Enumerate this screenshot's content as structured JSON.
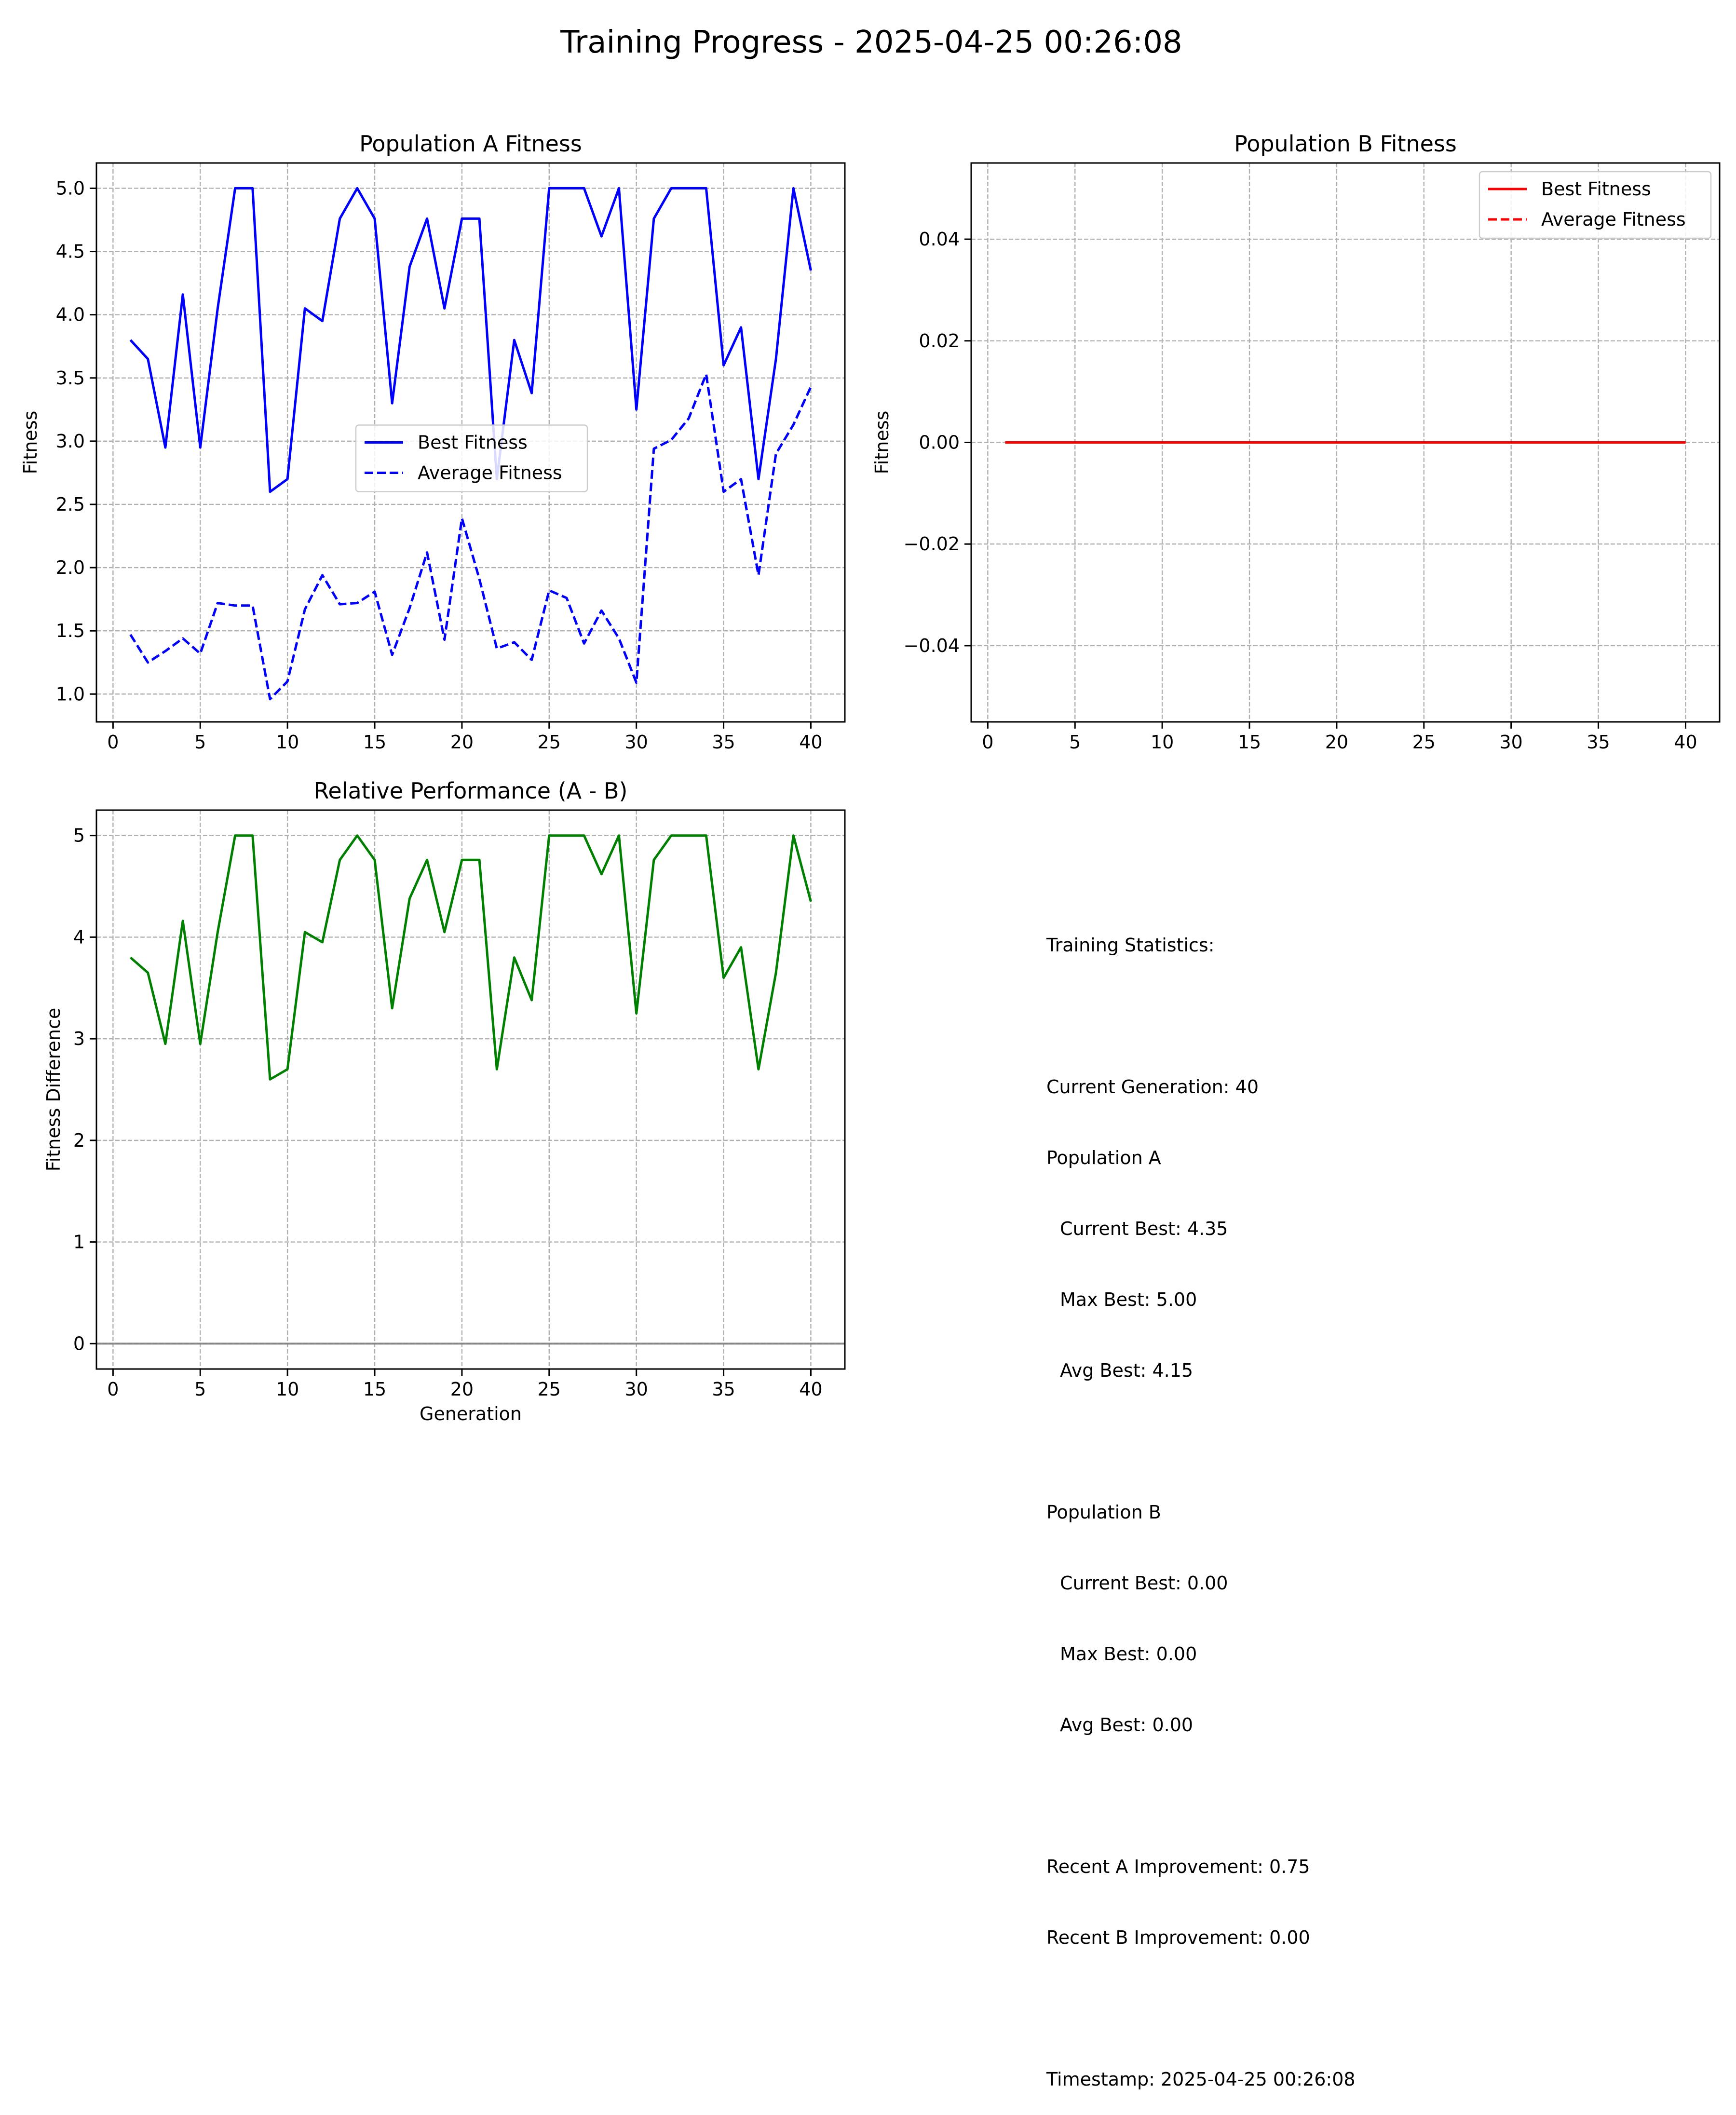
{
  "figure": {
    "title": "Training Progress - 2025-04-25 00:26:08"
  },
  "chart_data": [
    {
      "type": "line",
      "title": "Population A Fitness",
      "xlabel": "",
      "ylabel": "Fitness",
      "xlim": [
        -0.95,
        41.95
      ],
      "ylim": [
        0.78,
        5.2
      ],
      "xticks": [
        0,
        5,
        10,
        15,
        20,
        25,
        30,
        35,
        40
      ],
      "yticks": [
        1.0,
        1.5,
        2.0,
        2.5,
        3.0,
        3.5,
        4.0,
        4.5,
        5.0
      ],
      "ytick_decimals": 1,
      "grid": true,
      "legend": "center",
      "x": [
        1,
        2,
        3,
        4,
        5,
        6,
        7,
        8,
        9,
        10,
        11,
        12,
        13,
        14,
        15,
        16,
        17,
        18,
        19,
        20,
        21,
        22,
        23,
        24,
        25,
        26,
        27,
        28,
        29,
        30,
        31,
        32,
        33,
        34,
        35,
        36,
        37,
        38,
        39,
        40
      ],
      "series": [
        {
          "name": "Best Fitness",
          "color": "#0000ff",
          "dash": "solid",
          "values": [
            3.8,
            3.65,
            2.95,
            4.16,
            2.95,
            4.05,
            5.0,
            5.0,
            2.6,
            2.7,
            4.05,
            3.95,
            4.76,
            5.0,
            4.76,
            3.3,
            4.38,
            4.76,
            4.05,
            4.76,
            4.76,
            2.7,
            3.8,
            3.38,
            5.0,
            5.0,
            5.0,
            4.62,
            5.0,
            3.25,
            4.76,
            5.0,
            5.0,
            5.0,
            3.6,
            3.9,
            2.7,
            3.65,
            5.0,
            4.35
          ]
        },
        {
          "name": "Average Fitness",
          "color": "#0000ff",
          "dash": "dashed",
          "values": [
            1.47,
            1.25,
            1.34,
            1.44,
            1.32,
            1.72,
            1.7,
            1.7,
            0.96,
            1.1,
            1.67,
            1.94,
            1.71,
            1.72,
            1.81,
            1.31,
            1.68,
            2.12,
            1.43,
            2.39,
            1.91,
            1.36,
            1.41,
            1.27,
            1.82,
            1.76,
            1.4,
            1.66,
            1.44,
            1.09,
            2.94,
            3.01,
            3.18,
            3.53,
            2.6,
            2.7,
            1.94,
            2.9,
            3.13,
            3.43
          ]
        }
      ]
    },
    {
      "type": "line",
      "title": "Population B Fitness",
      "xlabel": "",
      "ylabel": "Fitness",
      "xlim": [
        -0.95,
        41.95
      ],
      "ylim": [
        -0.055,
        0.055
      ],
      "xticks": [
        0,
        5,
        10,
        15,
        20,
        25,
        30,
        35,
        40
      ],
      "yticks": [
        -0.04,
        -0.02,
        0.0,
        0.02,
        0.04
      ],
      "ytick_decimals": 2,
      "grid": true,
      "legend": "top-right",
      "x": [
        1,
        2,
        3,
        4,
        5,
        6,
        7,
        8,
        9,
        10,
        11,
        12,
        13,
        14,
        15,
        16,
        17,
        18,
        19,
        20,
        21,
        22,
        23,
        24,
        25,
        26,
        27,
        28,
        29,
        30,
        31,
        32,
        33,
        34,
        35,
        36,
        37,
        38,
        39,
        40
      ],
      "series": [
        {
          "name": "Best Fitness",
          "color": "#ff0000",
          "dash": "solid",
          "values": [
            0,
            0,
            0,
            0,
            0,
            0,
            0,
            0,
            0,
            0,
            0,
            0,
            0,
            0,
            0,
            0,
            0,
            0,
            0,
            0,
            0,
            0,
            0,
            0,
            0,
            0,
            0,
            0,
            0,
            0,
            0,
            0,
            0,
            0,
            0,
            0,
            0,
            0,
            0,
            0
          ]
        },
        {
          "name": "Average Fitness",
          "color": "#ff0000",
          "dash": "dashed",
          "values": [
            0,
            0,
            0,
            0,
            0,
            0,
            0,
            0,
            0,
            0,
            0,
            0,
            0,
            0,
            0,
            0,
            0,
            0,
            0,
            0,
            0,
            0,
            0,
            0,
            0,
            0,
            0,
            0,
            0,
            0,
            0,
            0,
            0,
            0,
            0,
            0,
            0,
            0,
            0,
            0
          ]
        }
      ]
    },
    {
      "type": "line",
      "title": "Relative Performance (A - B)",
      "xlabel": "Generation",
      "ylabel": "Fitness Difference",
      "xlim": [
        -0.95,
        41.95
      ],
      "ylim": [
        -0.25,
        5.25
      ],
      "xticks": [
        0,
        5,
        10,
        15,
        20,
        25,
        30,
        35,
        40
      ],
      "yticks": [
        0,
        1,
        2,
        3,
        4,
        5
      ],
      "ytick_decimals": 0,
      "grid": true,
      "legend": "none",
      "zero_line": true,
      "x": [
        1,
        2,
        3,
        4,
        5,
        6,
        7,
        8,
        9,
        10,
        11,
        12,
        13,
        14,
        15,
        16,
        17,
        18,
        19,
        20,
        21,
        22,
        23,
        24,
        25,
        26,
        27,
        28,
        29,
        30,
        31,
        32,
        33,
        34,
        35,
        36,
        37,
        38,
        39,
        40
      ],
      "series": [
        {
          "name": "",
          "color": "#008000",
          "dash": "solid",
          "values": [
            3.8,
            3.65,
            2.95,
            4.16,
            2.95,
            4.05,
            5.0,
            5.0,
            2.6,
            2.7,
            4.05,
            3.95,
            4.76,
            5.0,
            4.76,
            3.3,
            4.38,
            4.76,
            4.05,
            4.76,
            4.76,
            2.7,
            3.8,
            3.38,
            5.0,
            5.0,
            5.0,
            4.62,
            5.0,
            3.25,
            4.76,
            5.0,
            5.0,
            5.0,
            3.6,
            3.9,
            2.7,
            3.65,
            5.0,
            4.35
          ]
        }
      ]
    }
  ],
  "stats": {
    "heading": "Training Statistics:",
    "current_generation": "Current Generation: 40",
    "pop_a_label": "Population A",
    "pop_a_current": "Current Best: 4.35",
    "pop_a_max": "Max Best: 5.00",
    "pop_a_avg": "Avg Best: 4.15",
    "pop_b_label": "Population B",
    "pop_b_current": "Current Best: 0.00",
    "pop_b_max": "Max Best: 0.00",
    "pop_b_avg": "Avg Best: 0.00",
    "recent_a": "Recent A Improvement: 0.75",
    "recent_b": "Recent B Improvement: 0.00",
    "timestamp": "Timestamp: 2025-04-25 00:26:08"
  }
}
